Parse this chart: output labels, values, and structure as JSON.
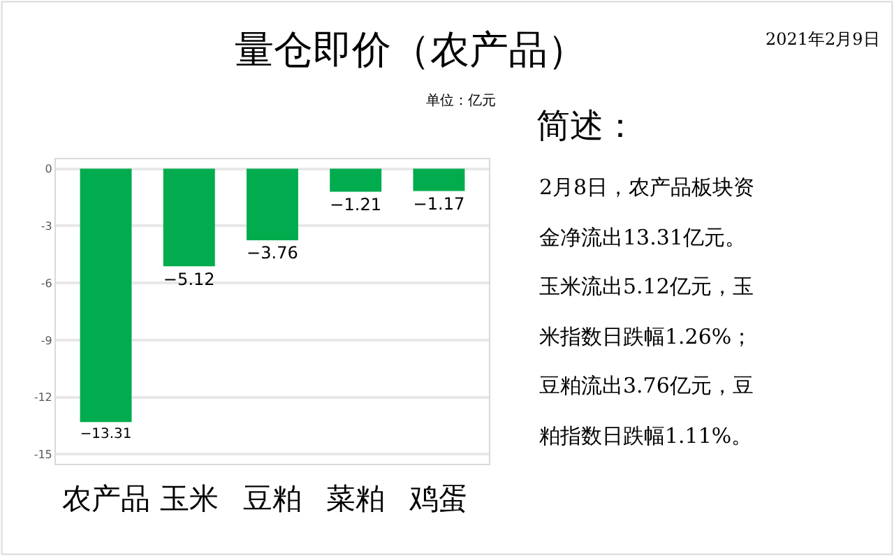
{
  "chart_data": {
    "type": "bar",
    "title": "量仓即价（农产品）",
    "subtitle": "单位：亿元",
    "categories": [
      "农产品",
      "玉米",
      "豆粕",
      "菜粕",
      "鸡蛋"
    ],
    "values": [
      -13.31,
      -5.12,
      -3.76,
      -1.21,
      -1.17
    ],
    "color": "#00ac4e",
    "ylim": [
      -15.5,
      0.5
    ],
    "yticks": [
      0,
      -3,
      -6,
      -9,
      -12,
      -15
    ],
    "grid": "y",
    "data_labels": true,
    "annotations": [
      "2021年2月9日",
      "简述：",
      "2月8日，农产品板块资",
      "金净流出13.31亿元。",
      "玉米流出5.12亿元，玉",
      "米指数日跌幅1.26%；",
      "豆粕流出3.76亿元，豆",
      "粕指数日跌幅1.11%。"
    ]
  }
}
